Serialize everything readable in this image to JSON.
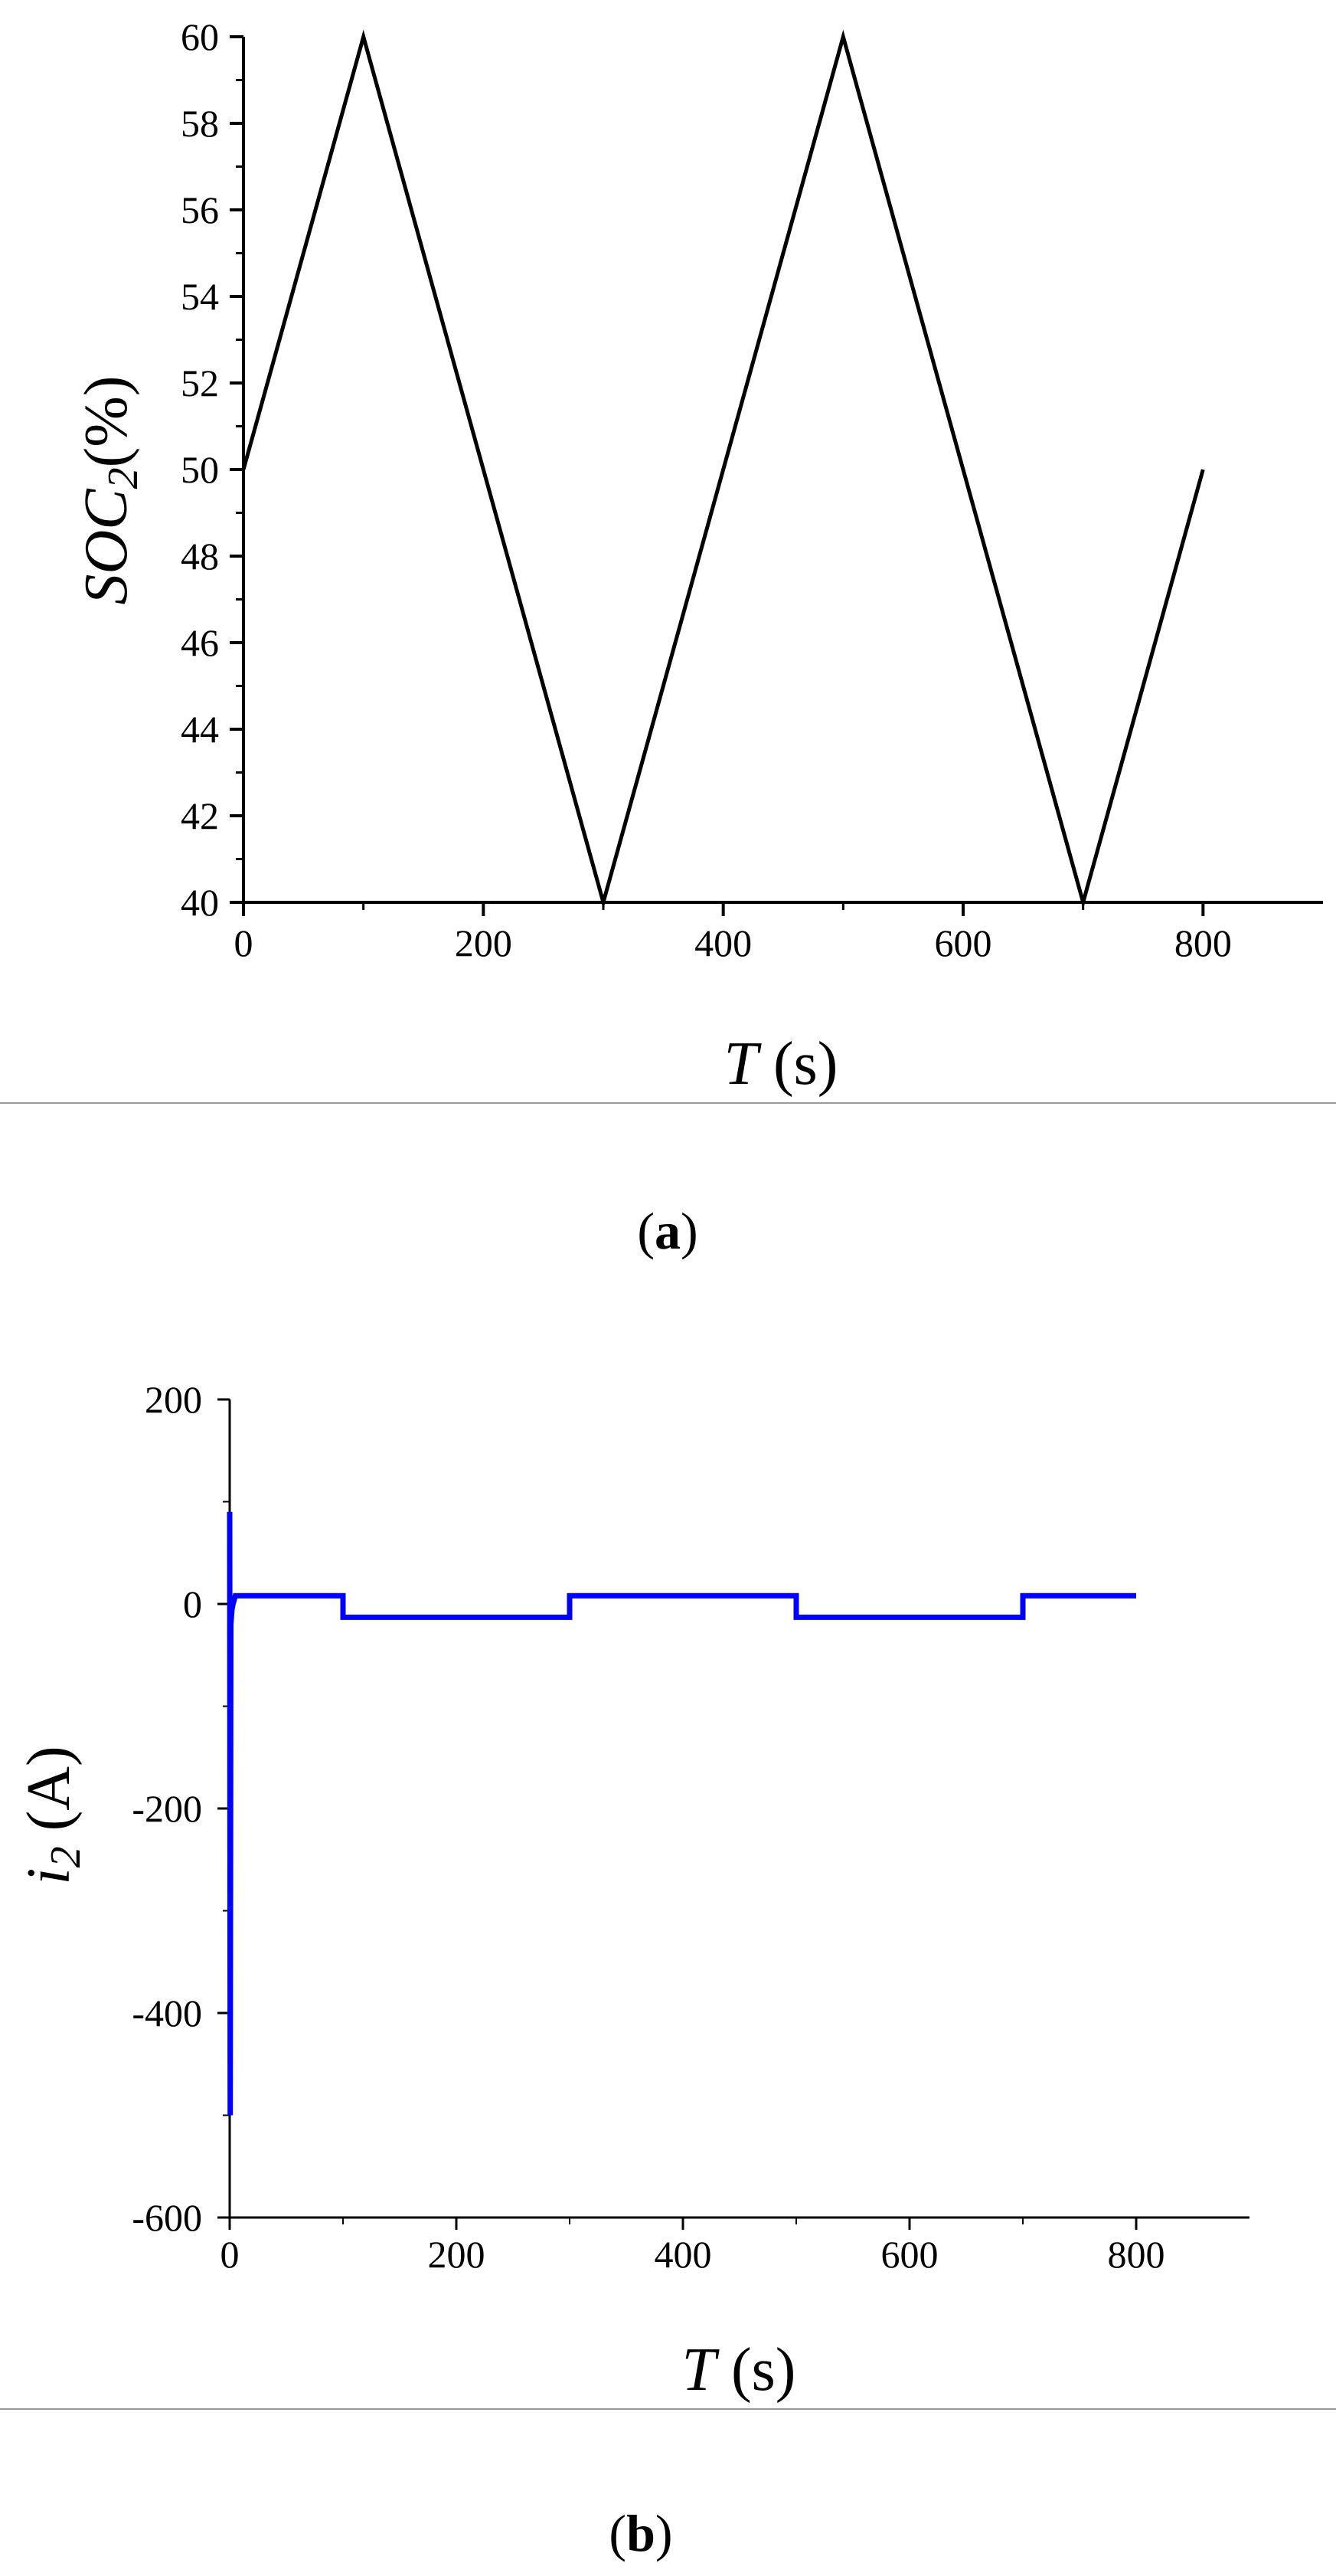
{
  "chart_data": [
    {
      "type": "line",
      "caption_letter": "a",
      "xlabel_var": "T",
      "xlabel_unit": " (s)",
      "ylabel_var": "SOC",
      "ylabel_sub": "2",
      "ylabel_unit": "(%)",
      "xlim": [
        0,
        900
      ],
      "ylim": [
        40,
        60
      ],
      "xticks": [
        0,
        200,
        400,
        600,
        800
      ],
      "yticks": [
        40,
        42,
        44,
        46,
        48,
        50,
        52,
        54,
        56,
        58,
        60
      ],
      "grid": false,
      "series": [
        {
          "color": "#000000",
          "x": [
            0,
            100,
            300,
            500,
            700,
            800
          ],
          "y": [
            50,
            60,
            40,
            60,
            40,
            50
          ]
        }
      ]
    },
    {
      "type": "line",
      "caption_letter": "b",
      "xlabel_var": "T",
      "xlabel_unit": " (s)",
      "ylabel_var": "i",
      "ylabel_sub": "2",
      "ylabel_unit": " (A)",
      "xlim": [
        0,
        900
      ],
      "ylim": [
        -600,
        200
      ],
      "xticks": [
        0,
        200,
        400,
        600,
        800
      ],
      "yticks": [
        -600,
        -400,
        -200,
        0,
        200
      ],
      "grid": false,
      "series": [
        {
          "color": "#0000ff",
          "x": [
            0,
            0.5,
            1,
            2,
            3,
            5,
            100,
            100,
            300,
            300,
            500,
            500,
            700,
            700,
            800
          ],
          "y": [
            90,
            -500,
            -20,
            -5,
            0,
            8,
            8,
            -13,
            -13,
            8,
            8,
            -13,
            -13,
            8,
            8
          ]
        }
      ]
    }
  ]
}
